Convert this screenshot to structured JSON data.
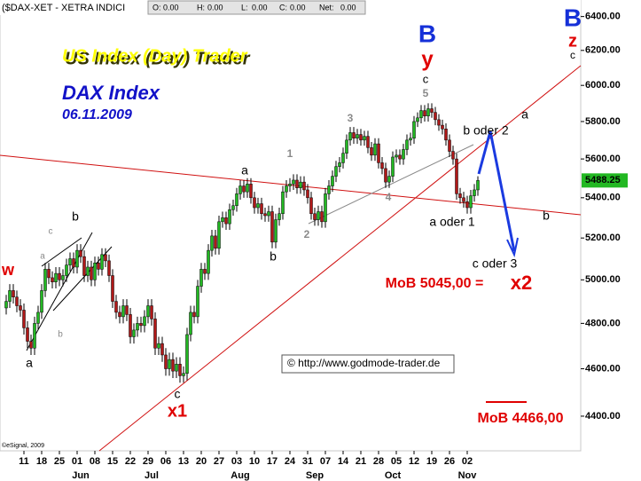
{
  "header": {
    "symbol": "($DAX-XET - XETRA INDICI",
    "quote": [
      {
        "label": "O:",
        "value": "0.00"
      },
      {
        "label": "H:",
        "value": "0.00"
      },
      {
        "label": "L:",
        "value": "0.00"
      },
      {
        "label": "C:",
        "value": "0.00"
      },
      {
        "label": "Net:",
        "value": "0.00"
      }
    ]
  },
  "chart_data": {
    "type": "candlestick",
    "title": "US Index (Day) Trader",
    "subtitle": "DAX Index",
    "date": "06.11.2009",
    "source": "© http://www.godmode-trader.de",
    "copyright": "©eSignal, 2009",
    "categories": [
      null,
      null,
      null,
      null,
      null,
      "11",
      null,
      null,
      null,
      null,
      "18",
      null,
      null,
      null,
      null,
      "25",
      null,
      null,
      null,
      null,
      "01",
      null,
      null,
      null,
      null,
      "08",
      null,
      null,
      null,
      null,
      "15",
      null,
      null,
      null,
      null,
      "22",
      null,
      null,
      null,
      null,
      "29",
      null,
      null,
      null,
      null,
      "06",
      null,
      null,
      null,
      null,
      "13",
      null,
      null,
      null,
      null,
      "20",
      null,
      null,
      null,
      null,
      "27",
      null,
      null,
      null,
      null,
      "03",
      null,
      null,
      null,
      null,
      "10",
      null,
      null,
      null,
      null,
      "17",
      null,
      null,
      null,
      null,
      "24",
      null,
      null,
      null,
      null,
      "31",
      null,
      null,
      null,
      null,
      "07",
      null,
      null,
      null,
      null,
      "14",
      null,
      null,
      null,
      null,
      "21",
      null,
      null,
      null,
      null,
      "28",
      null,
      null,
      null,
      null,
      "05",
      null,
      null,
      null,
      null,
      "12",
      null,
      null,
      null,
      null,
      "19",
      null,
      null,
      null,
      null,
      "26",
      null,
      null,
      null,
      null,
      "02",
      null,
      null,
      null
    ],
    "month_labels": [
      null,
      null,
      null,
      null,
      null,
      null,
      null,
      null,
      null,
      null,
      null,
      null,
      null,
      null,
      null,
      null,
      null,
      null,
      null,
      null,
      null,
      "Jun",
      null,
      null,
      null,
      null,
      null,
      null,
      null,
      null,
      null,
      null,
      null,
      null,
      null,
      null,
      null,
      null,
      null,
      null,
      null,
      "Jul",
      null,
      null,
      null,
      null,
      null,
      null,
      null,
      null,
      null,
      null,
      null,
      null,
      null,
      null,
      null,
      null,
      null,
      null,
      null,
      null,
      null,
      null,
      null,
      null,
      "Aug",
      null,
      null,
      null,
      null,
      null,
      null,
      null,
      null,
      null,
      null,
      null,
      null,
      null,
      null,
      null,
      null,
      null,
      null,
      null,
      null,
      "Sep",
      null,
      null,
      null,
      null,
      null,
      null,
      null,
      null,
      null,
      null,
      null,
      null,
      null,
      null,
      null,
      null,
      null,
      null,
      null,
      null,
      null,
      "Oct",
      null,
      null,
      null,
      null,
      null,
      null,
      null,
      null,
      null,
      null,
      null,
      null,
      null,
      null,
      null,
      null,
      null,
      null,
      null,
      null,
      "Nov",
      null,
      null,
      null
    ],
    "open": [
      4870,
      4900,
      4950,
      4920,
      4880,
      4860,
      4780,
      4720,
      4690,
      4800,
      4850,
      4950,
      5050,
      5010,
      4990,
      5030,
      5000,
      5020,
      5070,
      5100,
      5060,
      5140,
      5110,
      5020,
      5060,
      5000,
      5080,
      5050,
      5120,
      5090,
      5020,
      4900,
      4850,
      4830,
      4880,
      4840,
      4740,
      4770,
      4800,
      4790,
      4830,
      4880,
      4820,
      4690,
      4710,
      4660,
      4600,
      4640,
      4590,
      4620,
      4570,
      4580,
      4750,
      4850,
      4830,
      4970,
      5050,
      5030,
      5140,
      5210,
      5150,
      5280,
      5300,
      5270,
      5340,
      5360,
      5420,
      5460,
      5430,
      5470,
      5400,
      5350,
      5370,
      5320,
      5310,
      5330,
      5180,
      5290,
      5320,
      5430,
      5460,
      5470,
      5490,
      5450,
      5480,
      5440,
      5400,
      5320,
      5290,
      5330,
      5280,
      5420,
      5460,
      5510,
      5560,
      5580,
      5630,
      5700,
      5740,
      5710,
      5730,
      5700,
      5720,
      5660,
      5620,
      5680,
      5580,
      5550,
      5480,
      5510,
      5610,
      5620,
      5600,
      5650,
      5700,
      5710,
      5800,
      5820,
      5860,
      5830,
      5870,
      5850,
      5810,
      5780,
      5760,
      5700,
      5640,
      5600,
      5420,
      5400,
      5380,
      5350,
      5410,
      5440
    ],
    "high": [
      4930,
      4980,
      4980,
      4950,
      4910,
      4890,
      4810,
      4750,
      4830,
      4880,
      4980,
      5080,
      5080,
      5040,
      5060,
      5060,
      5050,
      5100,
      5130,
      5130,
      5170,
      5170,
      5140,
      5090,
      5090,
      5110,
      5110,
      5150,
      5150,
      5120,
      5050,
      4930,
      4880,
      4910,
      4910,
      4870,
      4800,
      4830,
      4830,
      4860,
      4910,
      4910,
      4850,
      4740,
      4740,
      4690,
      4670,
      4670,
      4650,
      4650,
      4610,
      4780,
      4880,
      4880,
      5000,
      5080,
      5080,
      5170,
      5240,
      5240,
      5310,
      5330,
      5330,
      5370,
      5390,
      5450,
      5490,
      5490,
      5500,
      5500,
      5430,
      5400,
      5400,
      5350,
      5360,
      5360,
      5320,
      5350,
      5460,
      5490,
      5500,
      5520,
      5520,
      5510,
      5510,
      5470,
      5430,
      5350,
      5360,
      5360,
      5450,
      5490,
      5540,
      5590,
      5610,
      5660,
      5730,
      5770,
      5770,
      5760,
      5760,
      5750,
      5750,
      5690,
      5710,
      5710,
      5610,
      5580,
      5540,
      5640,
      5650,
      5650,
      5680,
      5730,
      5740,
      5830,
      5850,
      5890,
      5890,
      5900,
      5900,
      5880,
      5840,
      5810,
      5790,
      5730,
      5670,
      5630,
      5450,
      5430,
      5410,
      5440,
      5470,
      5510
    ],
    "low": [
      4840,
      4870,
      4890,
      4850,
      4830,
      4750,
      4690,
      4660,
      4660,
      4770,
      4820,
      4920,
      4980,
      4960,
      4960,
      4970,
      4970,
      4990,
      5040,
      5030,
      5030,
      5080,
      4990,
      4990,
      4970,
      4970,
      5020,
      5020,
      5060,
      4990,
      4870,
      4820,
      4800,
      4800,
      4810,
      4710,
      4710,
      4740,
      4760,
      4760,
      4800,
      4790,
      4660,
      4660,
      4630,
      4570,
      4570,
      4560,
      4560,
      4540,
      4540,
      4550,
      4720,
      4800,
      4800,
      4940,
      5000,
      5000,
      5110,
      5120,
      5120,
      5250,
      5240,
      5240,
      5310,
      5330,
      5390,
      5400,
      5400,
      5370,
      5320,
      5320,
      5290,
      5280,
      5280,
      5150,
      5150,
      5260,
      5290,
      5400,
      5430,
      5440,
      5420,
      5420,
      5410,
      5370,
      5290,
      5260,
      5260,
      5250,
      5250,
      5390,
      5430,
      5480,
      5530,
      5550,
      5600,
      5670,
      5680,
      5680,
      5670,
      5670,
      5630,
      5590,
      5590,
      5550,
      5520,
      5450,
      5450,
      5480,
      5580,
      5570,
      5570,
      5620,
      5670,
      5680,
      5770,
      5790,
      5800,
      5800,
      5820,
      5780,
      5750,
      5730,
      5670,
      5610,
      5570,
      5390,
      5370,
      5350,
      5320,
      5320,
      5380,
      5410
    ],
    "close": [
      4900,
      4950,
      4920,
      4880,
      4860,
      4780,
      4720,
      4690,
      4800,
      4850,
      4950,
      5050,
      5010,
      4990,
      5030,
      5000,
      5020,
      5070,
      5100,
      5060,
      5140,
      5110,
      5020,
      5060,
      5000,
      5080,
      5050,
      5120,
      5090,
      5020,
      4900,
      4850,
      4830,
      4880,
      4840,
      4740,
      4770,
      4800,
      4790,
      4830,
      4880,
      4820,
      4690,
      4710,
      4660,
      4600,
      4640,
      4590,
      4620,
      4570,
      4580,
      4750,
      4850,
      4830,
      4970,
      5050,
      5030,
      5140,
      5210,
      5150,
      5280,
      5300,
      5270,
      5340,
      5360,
      5420,
      5460,
      5430,
      5470,
      5400,
      5350,
      5370,
      5320,
      5310,
      5330,
      5180,
      5290,
      5320,
      5430,
      5460,
      5470,
      5490,
      5450,
      5480,
      5440,
      5400,
      5320,
      5290,
      5330,
      5280,
      5420,
      5460,
      5510,
      5560,
      5580,
      5630,
      5700,
      5740,
      5710,
      5730,
      5700,
      5720,
      5660,
      5620,
      5680,
      5580,
      5550,
      5480,
      5510,
      5610,
      5620,
      5600,
      5650,
      5700,
      5710,
      5800,
      5820,
      5860,
      5830,
      5870,
      5850,
      5810,
      5780,
      5760,
      5700,
      5640,
      5600,
      5420,
      5400,
      5380,
      5350,
      5410,
      5440,
      5488.25
    ],
    "up_color": "#22b822",
    "down_color": "#b01818",
    "ylim": [
      4270,
      6500
    ],
    "log_scale": true,
    "yticks": [
      {
        "value": 4400,
        "label": "4400.00"
      },
      {
        "value": 4600,
        "label": "4600.00"
      },
      {
        "value": 4800,
        "label": "4800.00"
      },
      {
        "value": 5000,
        "label": "5000.00"
      },
      {
        "value": 5200,
        "label": "5200.00"
      },
      {
        "value": 5400,
        "label": "5400.00"
      },
      {
        "value": 5600,
        "label": "5600.00"
      },
      {
        "value": 5800,
        "label": "5800.00"
      },
      {
        "value": 6000,
        "label": "6000.00"
      },
      {
        "value": 6200,
        "label": "6200.00"
      },
      {
        "value": 6400,
        "label": "6400.00"
      }
    ],
    "annotations": [
      {
        "text": "w",
        "color": "#e00000"
      },
      {
        "text": "a",
        "color": "#000000"
      },
      {
        "text": "a",
        "color": "#8a8a8a"
      },
      {
        "text": "c",
        "color": "#8a8a8a"
      },
      {
        "text": "b",
        "color": "#8a8a8a"
      },
      {
        "text": "b",
        "color": "#000000"
      },
      {
        "text": "c",
        "color": "#000000"
      },
      {
        "text": "x1",
        "color": "#e00000"
      },
      {
        "text": "a",
        "color": "#000000"
      },
      {
        "text": "b",
        "color": "#000000"
      },
      {
        "text": "1",
        "color": "#8a8a8a"
      },
      {
        "text": "2",
        "color": "#8a8a8a"
      },
      {
        "text": "3",
        "color": "#8a8a8a"
      },
      {
        "text": "4",
        "color": "#8a8a8a"
      },
      {
        "text": "5",
        "color": "#8a8a8a"
      },
      {
        "text": "c",
        "color": "#000000"
      },
      {
        "text": "y",
        "color": "#e00000"
      },
      {
        "text": "B",
        "color": "#1530d8"
      },
      {
        "text": "b oder 2",
        "color": "#000000"
      },
      {
        "text": "a",
        "color": "#000000"
      },
      {
        "text": "a oder 1",
        "color": "#000000"
      },
      {
        "text": "b",
        "color": "#000000"
      },
      {
        "text": "c oder 3",
        "color": "#000000"
      },
      {
        "text": "MoB 5045,00 =",
        "color": "#e00000"
      },
      {
        "text": "x2",
        "color": "#e00000"
      },
      {
        "text": "MoB 4466,00",
        "color": "#e00000"
      },
      {
        "text": "B",
        "color": "#1530d8"
      },
      {
        "text": "z",
        "color": "#e00000"
      },
      {
        "text": "c",
        "color": "#000000"
      }
    ]
  }
}
